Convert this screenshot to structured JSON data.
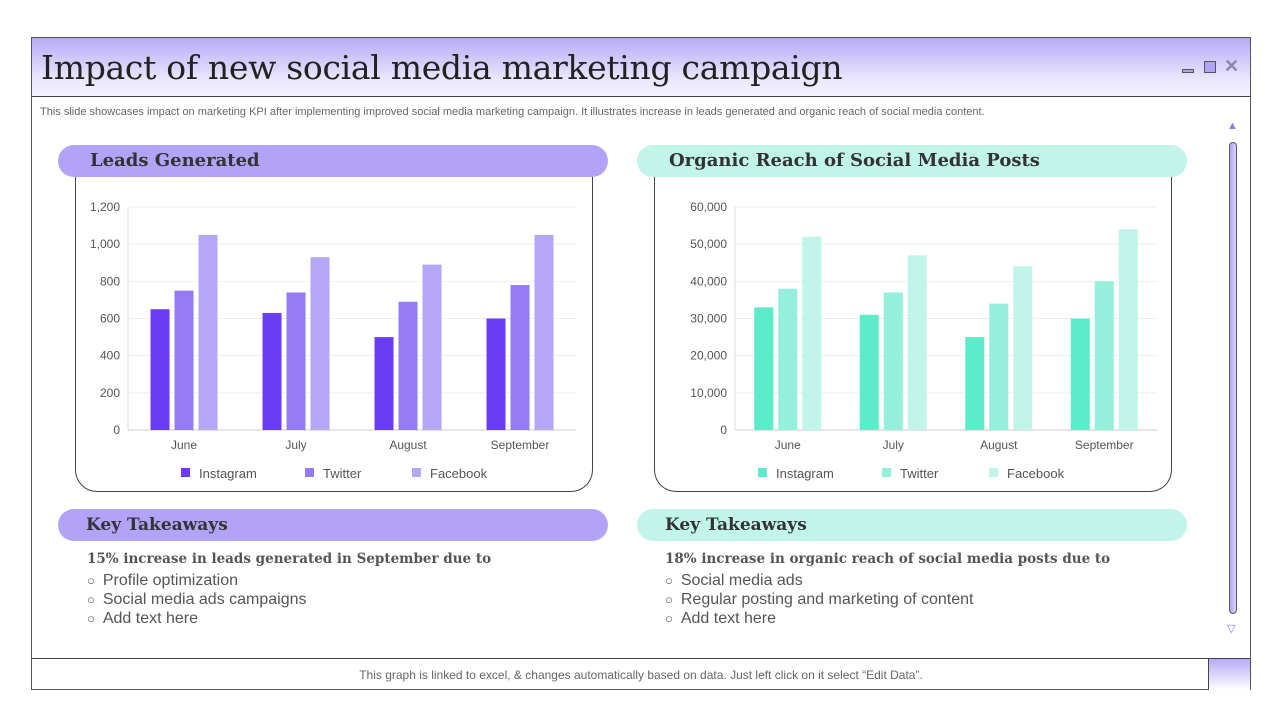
{
  "window": {
    "title": "Impact of new social media marketing campaign",
    "subtitle": "This slide showcases impact on marketing KPI after implementing improved social media marketing campaign. It illustrates increase in leads generated and organic reach of social media content.",
    "footer": "This graph is linked to excel, & changes automatically based on data. Just left click on it select “Edit Data”."
  },
  "left": {
    "heading": "Leads Generated",
    "takeaways_heading": "Key Takeaways",
    "takeaway_lead": "15% increase in leads generated in September  due to",
    "bullets": [
      "Profile optimization",
      "Social media ads campaigns",
      "Add text here"
    ]
  },
  "right": {
    "heading": "Organic Reach of Social Media Posts",
    "takeaways_heading": "Key Takeaways",
    "takeaway_lead": "18% increase in organic reach of social media posts due to",
    "bullets": [
      "Social media ads",
      "Regular posting and marketing of content",
      "Add text here"
    ]
  },
  "chart_data": [
    {
      "type": "bar",
      "categories": [
        "June",
        "July",
        "August",
        "September"
      ],
      "ylim": [
        0,
        1200
      ],
      "yticks": [
        "0",
        "200",
        "400",
        "600",
        "800",
        "1,000",
        "1,200"
      ],
      "grid": true,
      "legend": "bottom",
      "series": [
        {
          "name": "Instagram",
          "color": "#6a3cf6",
          "values": [
            650,
            630,
            500,
            600
          ]
        },
        {
          "name": "Twitter",
          "color": "#967bf7",
          "values": [
            750,
            740,
            690,
            780
          ]
        },
        {
          "name": "Facebook",
          "color": "#b6a6f7",
          "values": [
            1050,
            930,
            890,
            1050
          ]
        }
      ]
    },
    {
      "type": "bar",
      "categories": [
        "June",
        "July",
        "August",
        "September"
      ],
      "ylim": [
        0,
        60000
      ],
      "yticks": [
        "0",
        "10,000",
        "20,000",
        "30,000",
        "40,000",
        "50,000",
        "60,000"
      ],
      "grid": true,
      "legend": "bottom",
      "series": [
        {
          "name": "Instagram",
          "color": "#5cecc9",
          "values": [
            33000,
            31000,
            25000,
            30000
          ]
        },
        {
          "name": "Twitter",
          "color": "#95f0db",
          "values": [
            38000,
            37000,
            34000,
            40000
          ]
        },
        {
          "name": "Facebook",
          "color": "#c2f5e9",
          "values": [
            52000,
            47000,
            44000,
            54000
          ]
        }
      ]
    }
  ]
}
